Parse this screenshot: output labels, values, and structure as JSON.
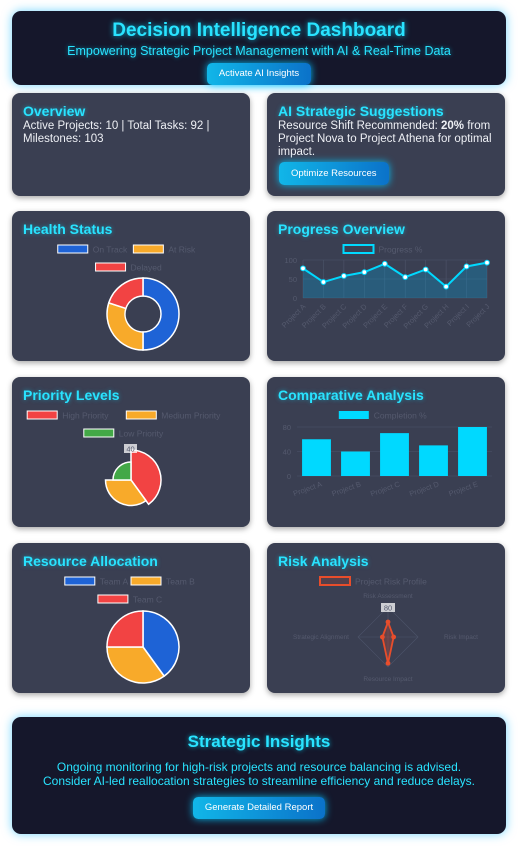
{
  "header": {
    "title": "Decision Intelligence Dashboard",
    "subtitle": "Empowering Strategic Project Management with AI & Real-Time Data",
    "button": "Activate AI Insights"
  },
  "overview": {
    "title": "Overview",
    "text": "Active Projects: 10 | Total Tasks: 92 | Milestones: 103"
  },
  "suggestions": {
    "title": "AI Strategic Suggestions",
    "text_before": "Resource Shift Recommended: ",
    "text_bold": "20%",
    "text_after": " from Project Nova to Project Athena for optimal impact.",
    "button": "Optimize Resources"
  },
  "health": {
    "title": "Health Status",
    "chart_data": {
      "type": "pie",
      "style": "doughnut",
      "labels": [
        "On Track",
        "At Risk",
        "Delayed"
      ],
      "values": [
        50,
        30,
        20
      ],
      "colors": [
        "#1e63d6",
        "#f8aa2a",
        "#f24343"
      ]
    }
  },
  "progress": {
    "title": "Progress Overview",
    "chart_data": {
      "type": "line",
      "series_name": "Progress %",
      "categories": [
        "Project A",
        "Project B",
        "Project C",
        "Project D",
        "Project E",
        "Project F",
        "Project G",
        "Project H",
        "Project I",
        "Project J"
      ],
      "values": [
        78,
        42,
        58,
        68,
        90,
        55,
        75,
        30,
        83,
        93
      ],
      "yticks": [
        "100",
        "50",
        "0"
      ],
      "ylim": [
        0,
        100
      ],
      "color": "#00d9ff"
    }
  },
  "priority": {
    "title": "Priority Levels",
    "chart_data": {
      "type": "pie",
      "style": "polar",
      "labels": [
        "High Priority",
        "Medium Priority",
        "Low Priority"
      ],
      "values": [
        40,
        35,
        25
      ],
      "radii": [
        1.0,
        0.85,
        0.6
      ],
      "colors": [
        "#f24343",
        "#f8aa2a",
        "#43a847"
      ],
      "tick_label": "40"
    }
  },
  "comparative": {
    "title": "Comparative Analysis",
    "chart_data": {
      "type": "bar",
      "series_name": "Completion %",
      "categories": [
        "Project A",
        "Project B",
        "Project C",
        "Project D",
        "Project E"
      ],
      "values": [
        60,
        40,
        70,
        50,
        80
      ],
      "yticks": [
        "80",
        "40",
        "0"
      ],
      "ylim": [
        0,
        80
      ],
      "color": "#00d9ff"
    }
  },
  "resource": {
    "title": "Resource Allocation",
    "chart_data": {
      "type": "pie",
      "labels": [
        "Team A",
        "Team B",
        "Team C"
      ],
      "values": [
        40,
        35,
        25
      ],
      "colors": [
        "#1e63d6",
        "#f8aa2a",
        "#f24343"
      ]
    }
  },
  "risk": {
    "title": "Risk Analysis",
    "chart_data": {
      "type": "radar",
      "series_name": "Project Risk Profile",
      "axes": [
        "Risk Assessment",
        "Risk Impact",
        "Resource Impact",
        "Strategic Alignment"
      ],
      "values": [
        40,
        15,
        70,
        15
      ],
      "max": 80,
      "tick_label": "80",
      "color": "#e84d2b"
    }
  },
  "insights": {
    "title": "Strategic Insights",
    "text": "Ongoing monitoring for high-risk projects and resource balancing is advised. Consider AI-led reallocation strategies to streamline efficiency and reduce delays.",
    "button": "Generate Detailed Report"
  }
}
